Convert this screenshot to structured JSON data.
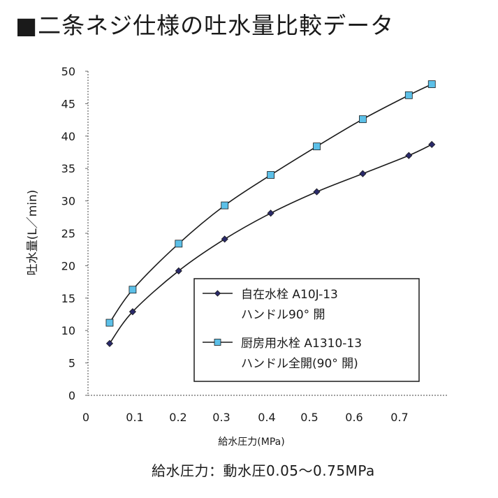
{
  "title": "■二条ネジ仕様の吐水量比較データ",
  "footnote": "給水圧力：動水圧0.05～0.75MPa",
  "colors": {
    "series1": "#2a2a6a",
    "series2": "#5cc0e8",
    "line": "#1a1a1a"
  },
  "chart_data": {
    "type": "line",
    "xlabel": "給水圧力(MPa)",
    "ylabel": "吐水量(L／min)",
    "xlim": [
      0,
      0.75
    ],
    "ylim": [
      0,
      50
    ],
    "x_ticks": [
      "0",
      "0.1",
      "0.2",
      "0.3",
      "0.4",
      "0.5",
      "0.6",
      "0.7"
    ],
    "y_ticks": [
      "0",
      "5",
      "10",
      "15",
      "20",
      "25",
      "30",
      "35",
      "40",
      "45",
      "50"
    ],
    "grid": false,
    "legend_position": "bottom-right",
    "series": [
      {
        "name": "自在水栓 A10J-13",
        "name_line2": "ハンドル90° 開",
        "marker": "diamond",
        "x": [
          0.05,
          0.1,
          0.2,
          0.3,
          0.4,
          0.5,
          0.6,
          0.7,
          0.75
        ],
        "y": [
          8.0,
          12.9,
          19.2,
          24.1,
          28.1,
          31.4,
          34.2,
          37.0,
          38.7
        ]
      },
      {
        "name": "厨房用水栓 A1310-13",
        "name_line2": "ハンドル全開(90° 開)",
        "marker": "square",
        "x": [
          0.05,
          0.1,
          0.2,
          0.3,
          0.4,
          0.5,
          0.6,
          0.7,
          0.75
        ],
        "y": [
          11.2,
          16.3,
          23.4,
          29.3,
          34.0,
          38.4,
          42.6,
          46.3,
          48.0
        ]
      }
    ]
  }
}
